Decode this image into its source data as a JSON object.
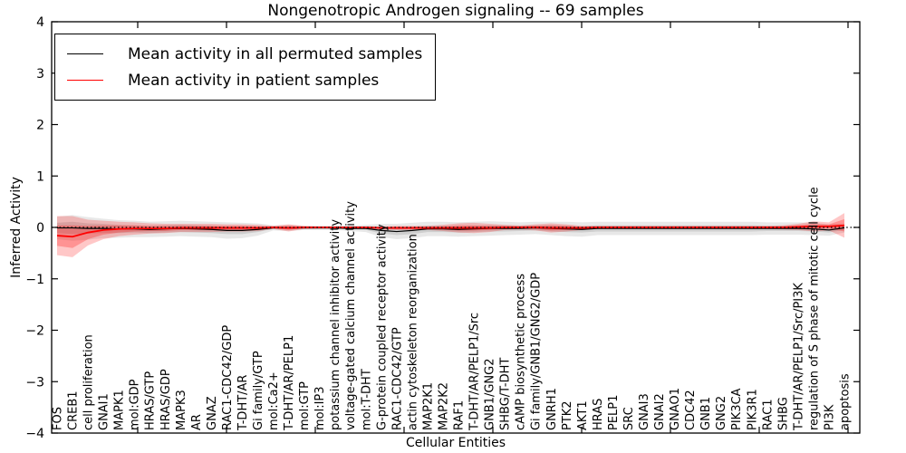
{
  "chart_data": {
    "type": "line",
    "title": "Nongenotropic Androgen signaling -- 69 samples",
    "xlabel": "Cellular Entities",
    "ylabel": "Inferred Activity",
    "ylim": [
      -4,
      4
    ],
    "yticks": [
      4,
      3,
      2,
      1,
      0,
      -1,
      -2,
      -3,
      -4
    ],
    "grid": false,
    "legend_position": "upper left",
    "zero_line_style": "dotted",
    "categories": [
      "FOS",
      "CREB1",
      "cell proliferation",
      "GNAI1",
      "MAPK1",
      "mol:GDP",
      "HRAS/GTP",
      "HRAS/GDP",
      "MAPK3",
      "AR",
      "GNAZ",
      "RAC1-CDC42/GDP",
      "T-DHT/AR",
      "Gi family/GTP",
      "mol:Ca2+",
      "T-DHT/AR/PELP1",
      "mol:GTP",
      "mol:IP3",
      "potassium channel inhibitor activity",
      "voltage-gated calcium channel activity",
      "mol:T-DHT",
      "G-protein coupled receptor activity",
      "RAC1-CDC42/GTP",
      "actin cytoskeleton reorganization",
      "MAP2K1",
      "MAP2K2",
      "RAF1",
      "T-DHT/AR/PELP1/Src",
      "GNB1/GNG2",
      "SHBG/T-DHT",
      "cAMP biosynthetic process",
      "Gi family/GNB1/GNG2/GDP",
      "GNRH1",
      "PTK2",
      "AKT1",
      "HRAS",
      "PELP1",
      "SRC",
      "GNAI3",
      "GNAI2",
      "GNAO1",
      "CDC42",
      "GNB1",
      "GNG2",
      "PIK3CA",
      "PIK3R1",
      "RAC1",
      "SHBG",
      "T-DHT/AR/PELP1/Src/PI3K",
      "regulation of S phase of mitotic cell cycle",
      "PI3K",
      "apoptosis"
    ],
    "series": [
      {
        "name": "Mean activity in all permuted samples",
        "color": "#000000",
        "band_color": "#000000",
        "values": [
          -0.01,
          -0.01,
          -0.02,
          -0.02,
          -0.03,
          -0.03,
          -0.04,
          -0.03,
          -0.02,
          -0.03,
          -0.04,
          -0.06,
          -0.06,
          -0.04,
          -0.01,
          -0.01,
          -0.01,
          -0.01,
          -0.01,
          -0.02,
          -0.02,
          -0.06,
          -0.08,
          -0.06,
          -0.03,
          -0.03,
          -0.04,
          -0.03,
          -0.02,
          -0.02,
          -0.02,
          -0.01,
          -0.02,
          -0.03,
          -0.04,
          -0.02,
          -0.02,
          -0.02,
          -0.02,
          -0.02,
          -0.02,
          -0.02,
          -0.02,
          -0.02,
          -0.02,
          -0.02,
          -0.02,
          -0.02,
          -0.02,
          -0.03,
          -0.05,
          -0.01
        ],
        "band_outer_halfwidth": [
          0.22,
          0.25,
          0.22,
          0.19,
          0.17,
          0.16,
          0.15,
          0.15,
          0.15,
          0.15,
          0.15,
          0.16,
          0.15,
          0.12,
          0.05,
          0.06,
          0.04,
          0.04,
          0.04,
          0.05,
          0.07,
          0.13,
          0.15,
          0.15,
          0.14,
          0.14,
          0.14,
          0.14,
          0.14,
          0.13,
          0.12,
          0.12,
          0.13,
          0.14,
          0.14,
          0.13,
          0.13,
          0.13,
          0.13,
          0.13,
          0.13,
          0.13,
          0.13,
          0.13,
          0.13,
          0.13,
          0.12,
          0.12,
          0.12,
          0.12,
          0.11,
          0.09
        ],
        "band_inner_halfwidth": [
          0.1,
          0.12,
          0.1,
          0.09,
          0.08,
          0.07,
          0.07,
          0.07,
          0.07,
          0.07,
          0.07,
          0.07,
          0.07,
          0.05,
          0.02,
          0.03,
          0.02,
          0.02,
          0.02,
          0.02,
          0.03,
          0.06,
          0.07,
          0.07,
          0.06,
          0.06,
          0.06,
          0.06,
          0.06,
          0.06,
          0.05,
          0.05,
          0.06,
          0.06,
          0.06,
          0.06,
          0.06,
          0.06,
          0.06,
          0.06,
          0.06,
          0.06,
          0.06,
          0.06,
          0.06,
          0.06,
          0.05,
          0.05,
          0.05,
          0.05,
          0.05,
          0.04
        ]
      },
      {
        "name": "Mean activity in patient samples",
        "color": "#ff0000",
        "band_color": "#ff0000",
        "values": [
          -0.16,
          -0.18,
          -0.1,
          -0.05,
          -0.03,
          -0.02,
          -0.02,
          -0.02,
          -0.01,
          -0.01,
          -0.01,
          -0.01,
          -0.01,
          -0.01,
          0,
          -0.01,
          0,
          0,
          0,
          0,
          0,
          -0.01,
          -0.01,
          -0.01,
          -0.01,
          -0.01,
          -0.01,
          -0.01,
          -0.01,
          0,
          0,
          0,
          -0.01,
          -0.01,
          -0.01,
          0,
          0,
          0,
          0,
          0,
          0,
          0,
          0,
          0,
          0,
          0,
          0,
          0,
          0.01,
          0.02,
          0.02,
          0.04
        ],
        "band_outer_halfwidth": [
          0.38,
          0.4,
          0.25,
          0.18,
          0.14,
          0.12,
          0.1,
          0.09,
          0.08,
          0.08,
          0.08,
          0.07,
          0.07,
          0.06,
          0.03,
          0.07,
          0.03,
          0.02,
          0.02,
          0.02,
          0.02,
          0.03,
          0.04,
          0.04,
          0.04,
          0.06,
          0.09,
          0.1,
          0.08,
          0.05,
          0.04,
          0.06,
          0.09,
          0.07,
          0.04,
          0.03,
          0.03,
          0.03,
          0.03,
          0.03,
          0.03,
          0.03,
          0.03,
          0.03,
          0.03,
          0.03,
          0.03,
          0.04,
          0.06,
          0.1,
          0.08,
          0.24
        ],
        "band_inner_halfwidth": [
          0.2,
          0.22,
          0.13,
          0.09,
          0.07,
          0.06,
          0.05,
          0.05,
          0.04,
          0.04,
          0.04,
          0.04,
          0.04,
          0.03,
          0.015,
          0.04,
          0.015,
          0.01,
          0.01,
          0.01,
          0.01,
          0.015,
          0.02,
          0.02,
          0.02,
          0.03,
          0.05,
          0.05,
          0.04,
          0.025,
          0.02,
          0.03,
          0.05,
          0.04,
          0.02,
          0.015,
          0.015,
          0.015,
          0.015,
          0.015,
          0.015,
          0.015,
          0.015,
          0.015,
          0.015,
          0.015,
          0.015,
          0.02,
          0.03,
          0.05,
          0.04,
          0.12
        ]
      }
    ]
  }
}
